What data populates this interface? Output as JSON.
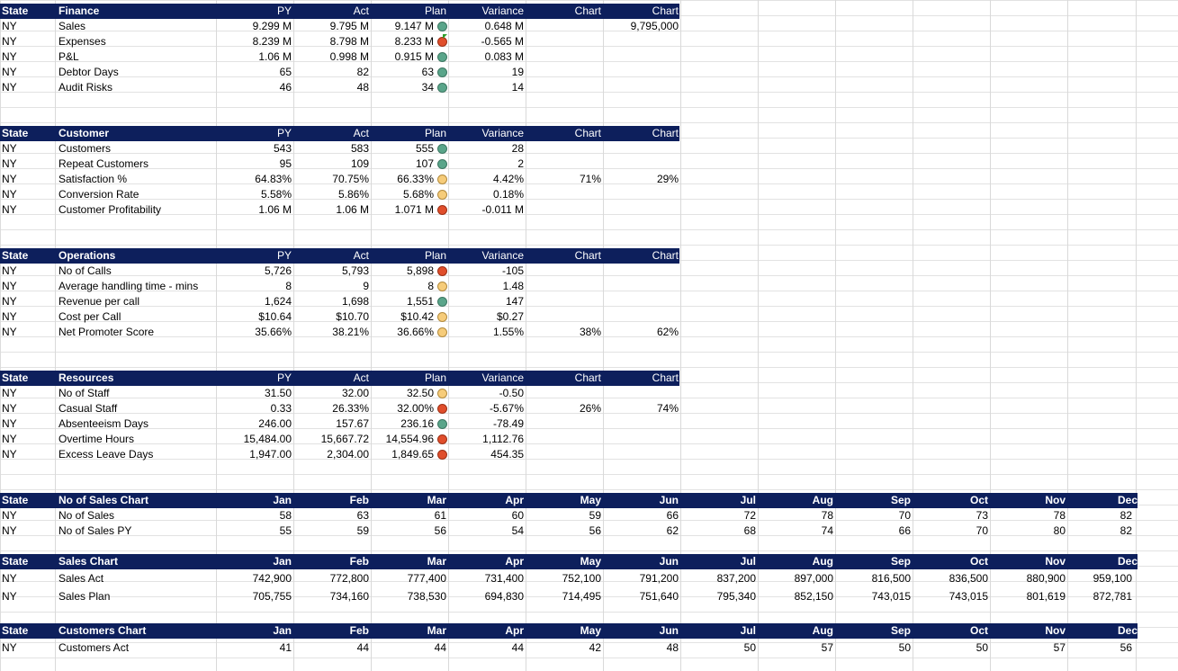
{
  "months": [
    "Jan",
    "Feb",
    "Mar",
    "Apr",
    "May",
    "Jun",
    "Jul",
    "Aug",
    "Sep",
    "Oct",
    "Nov",
    "Dec"
  ],
  "kpi_headers": {
    "state": "State",
    "py": "PY",
    "act": "Act",
    "plan": "Plan",
    "variance": "Variance",
    "chart1": "Chart",
    "chart2": "Chart"
  },
  "finance": {
    "title": "Finance",
    "chart2_top": "9,795,000",
    "rows": [
      {
        "state": "NY",
        "name": "Sales",
        "py": "9.299 M",
        "act": "9.795 M",
        "plan": "9.147 M",
        "status": "green",
        "variance": "0.648 M",
        "c1": "",
        "c2": ""
      },
      {
        "state": "NY",
        "name": "Expenses",
        "py": "8.239 M",
        "act": "8.798 M",
        "plan": "8.233 M",
        "status": "red",
        "variance": "-0.565 M",
        "c1": "",
        "c2": "",
        "flag": true
      },
      {
        "state": "NY",
        "name": "P&L",
        "py": "1.06 M",
        "act": "0.998 M",
        "plan": "0.915 M",
        "status": "green",
        "variance": "0.083 M",
        "c1": "",
        "c2": ""
      },
      {
        "state": "NY",
        "name": "Debtor Days",
        "py": "65",
        "act": "82",
        "plan": "63",
        "status": "green",
        "variance": "19",
        "c1": "",
        "c2": ""
      },
      {
        "state": "NY",
        "name": "Audit Risks",
        "py": "46",
        "act": "48",
        "plan": "34",
        "status": "green",
        "variance": "14",
        "c1": "",
        "c2": ""
      }
    ]
  },
  "customer": {
    "title": "Customer",
    "rows": [
      {
        "state": "NY",
        "name": "Customers",
        "py": "543",
        "act": "583",
        "plan": "555",
        "status": "green",
        "variance": "28",
        "c1": "",
        "c2": ""
      },
      {
        "state": "NY",
        "name": "Repeat Customers",
        "py": "95",
        "act": "109",
        "plan": "107",
        "status": "green",
        "variance": "2",
        "c1": "",
        "c2": ""
      },
      {
        "state": "NY",
        "name": "Satisfaction %",
        "py": "64.83%",
        "act": "70.75%",
        "plan": "66.33%",
        "status": "amber",
        "variance": "4.42%",
        "c1": "71%",
        "c2": "29%"
      },
      {
        "state": "NY",
        "name": "Conversion Rate",
        "py": "5.58%",
        "act": "5.86%",
        "plan": "5.68%",
        "status": "amber",
        "variance": "0.18%",
        "c1": "",
        "c2": ""
      },
      {
        "state": "NY",
        "name": "Customer Profitability",
        "py": "1.06 M",
        "act": "1.06 M",
        "plan": "1.071 M",
        "status": "red",
        "variance": "-0.011 M",
        "c1": "",
        "c2": ""
      }
    ]
  },
  "operations": {
    "title": "Operations",
    "rows": [
      {
        "state": "NY",
        "name": "No of Calls",
        "py": "5,726",
        "act": "5,793",
        "plan": "5,898",
        "status": "red",
        "variance": "-105",
        "c1": "",
        "c2": ""
      },
      {
        "state": "NY",
        "name": "Average handling time - mins",
        "py": "8",
        "act": "9",
        "plan": "8",
        "status": "amber",
        "variance": "1.48",
        "c1": "",
        "c2": ""
      },
      {
        "state": "NY",
        "name": "Revenue per call",
        "py": "1,624",
        "act": "1,698",
        "plan": "1,551",
        "status": "green",
        "variance": "147",
        "c1": "",
        "c2": ""
      },
      {
        "state": "NY",
        "name": "Cost per Call",
        "py": "$10.64",
        "act": "$10.70",
        "plan": "$10.42",
        "status": "amber",
        "variance": "$0.27",
        "c1": "",
        "c2": ""
      },
      {
        "state": "NY",
        "name": "Net Promoter Score",
        "py": "35.66%",
        "act": "38.21%",
        "plan": "36.66%",
        "status": "amber",
        "variance": "1.55%",
        "c1": "38%",
        "c2": "62%"
      }
    ]
  },
  "resources": {
    "title": "Resources",
    "rows": [
      {
        "state": "NY",
        "name": "No of Staff",
        "py": "31.50",
        "act": "32.00",
        "plan": "32.50",
        "status": "amber",
        "variance": "-0.50",
        "c1": "",
        "c2": ""
      },
      {
        "state": "NY",
        "name": "Casual Staff",
        "py": "0.33",
        "act": "26.33%",
        "plan": "32.00%",
        "status": "red",
        "variance": "-5.67%",
        "c1": "26%",
        "c2": "74%"
      },
      {
        "state": "NY",
        "name": "Absenteeism Days",
        "py": "246.00",
        "act": "157.67",
        "plan": "236.16",
        "status": "green",
        "variance": "-78.49",
        "c1": "",
        "c2": ""
      },
      {
        "state": "NY",
        "name": "Overtime Hours",
        "py": "15,484.00",
        "act": "15,667.72",
        "plan": "14,554.96",
        "status": "red",
        "variance": "1,112.76",
        "c1": "",
        "c2": ""
      },
      {
        "state": "NY",
        "name": "Excess Leave Days",
        "py": "1,947.00",
        "act": "2,304.00",
        "plan": "1,849.65",
        "status": "red",
        "variance": "454.35",
        "c1": "",
        "c2": ""
      }
    ]
  },
  "sales_count": {
    "title": "No of Sales Chart",
    "rows": [
      {
        "state": "NY",
        "name": "No of Sales",
        "values": [
          "58",
          "63",
          "61",
          "60",
          "59",
          "66",
          "72",
          "78",
          "70",
          "73",
          "78",
          "82"
        ]
      },
      {
        "state": "NY",
        "name": "No of Sales PY",
        "values": [
          "55",
          "59",
          "56",
          "54",
          "56",
          "62",
          "68",
          "74",
          "66",
          "70",
          "80",
          "82"
        ]
      }
    ]
  },
  "sales_chart": {
    "title": "Sales Chart",
    "rows": [
      {
        "state": "NY",
        "name": "Sales Act",
        "values": [
          "742,900",
          "772,800",
          "777,400",
          "731,400",
          "752,100",
          "791,200",
          "837,200",
          "897,000",
          "816,500",
          "836,500",
          "880,900",
          "959,100"
        ]
      },
      {
        "state": "NY",
        "name": "Sales Plan",
        "values": [
          "705,755",
          "734,160",
          "738,530",
          "694,830",
          "714,495",
          "751,640",
          "795,340",
          "852,150",
          "743,015",
          "743,015",
          "801,619",
          "872,781"
        ]
      }
    ]
  },
  "customers_chart": {
    "title": "Customers Chart",
    "rows": [
      {
        "state": "NY",
        "name": "Customers Act",
        "values": [
          "41",
          "44",
          "44",
          "44",
          "42",
          "48",
          "50",
          "57",
          "50",
          "50",
          "57",
          "56"
        ]
      }
    ]
  },
  "colors": {
    "header_bg": "#0d1f5c",
    "green": "#5aa58a",
    "amber": "#f6cc7a",
    "red": "#e04e2b"
  }
}
